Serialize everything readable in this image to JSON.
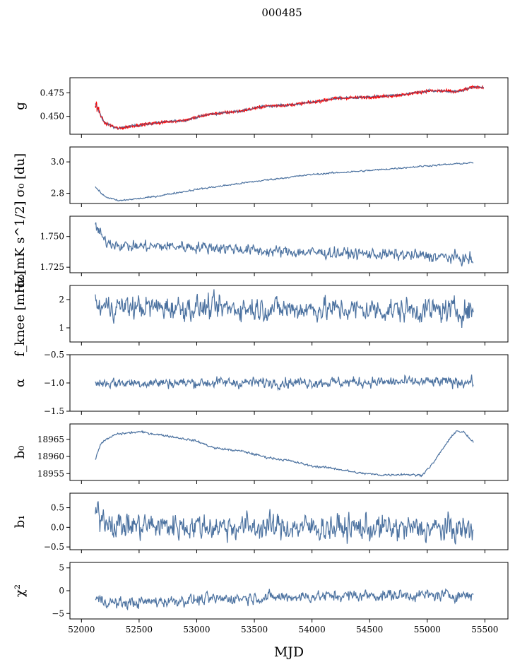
{
  "figure": {
    "title": "000485",
    "xlabel": "MJD"
  },
  "chart_data": {
    "type": "line",
    "x_axis": {
      "range": [
        51900,
        55700
      ],
      "ticks": [
        52000,
        52500,
        53000,
        53500,
        54000,
        54500,
        55000,
        55500
      ],
      "tick_labels": [
        "52000",
        "52500",
        "53000",
        "53500",
        "54000",
        "54500",
        "55000",
        "55500"
      ]
    },
    "colors": {
      "series": "#4c72a0",
      "overlay": "#ff0000"
    },
    "panels": [
      {
        "key": "g",
        "ylabel": "g",
        "ylim": [
          0.431,
          0.491
        ],
        "yticks": [
          0.45,
          0.475
        ],
        "ytick_labels": [
          "0.450",
          "0.475"
        ],
        "noise": 0.0006,
        "overlay": "red",
        "trend": [
          [
            52120,
            0.463
          ],
          [
            52200,
            0.443
          ],
          [
            52320,
            0.437
          ],
          [
            52450,
            0.44
          ],
          [
            52650,
            0.443
          ],
          [
            52900,
            0.446
          ],
          [
            53100,
            0.452
          ],
          [
            53400,
            0.456
          ],
          [
            53600,
            0.461
          ],
          [
            53800,
            0.462
          ],
          [
            54000,
            0.465
          ],
          [
            54200,
            0.469
          ],
          [
            54400,
            0.47
          ],
          [
            54600,
            0.471
          ],
          [
            54800,
            0.473
          ],
          [
            55000,
            0.477
          ],
          [
            55150,
            0.477
          ],
          [
            55250,
            0.476
          ],
          [
            55400,
            0.481
          ],
          [
            55490,
            0.481
          ]
        ]
      },
      {
        "key": "sigma0",
        "ylabel": "σ₀ [du]",
        "ylim": [
          2.735,
          3.095
        ],
        "yticks": [
          2.8,
          3.0
        ],
        "ytick_labels": [
          "2.8",
          "3.0"
        ],
        "noise": 0.0025,
        "trend": [
          [
            52120,
            2.84
          ],
          [
            52200,
            2.78
          ],
          [
            52320,
            2.752
          ],
          [
            52600,
            2.775
          ],
          [
            53000,
            2.825
          ],
          [
            53500,
            2.875
          ],
          [
            54000,
            2.92
          ],
          [
            54500,
            2.945
          ],
          [
            55000,
            2.975
          ],
          [
            55400,
            2.995
          ]
        ]
      },
      {
        "key": "sigma0_mk",
        "ylabel": "σ₀[mK s^1/2]",
        "ylim": [
          1.7205,
          1.7665
        ],
        "yticks": [
          1.725,
          1.75
        ],
        "ytick_labels": [
          "1.725",
          "1.750"
        ],
        "noise": 0.0022,
        "trend": [
          [
            52120,
            1.759
          ],
          [
            52200,
            1.746
          ],
          [
            52400,
            1.742
          ],
          [
            52800,
            1.742
          ],
          [
            53200,
            1.741
          ],
          [
            53600,
            1.738
          ],
          [
            54000,
            1.737
          ],
          [
            54400,
            1.736
          ],
          [
            54800,
            1.735
          ],
          [
            55200,
            1.733
          ],
          [
            55400,
            1.731
          ]
        ]
      },
      {
        "key": "fknee",
        "ylabel": "f_knee [mHz]",
        "ylim": [
          0.5,
          2.5
        ],
        "yticks": [
          1,
          2
        ],
        "ytick_labels": [
          "1",
          "2"
        ],
        "noise": 0.2,
        "trend": [
          [
            52120,
            1.75
          ],
          [
            55400,
            1.6
          ]
        ]
      },
      {
        "key": "alpha",
        "ylabel": "α",
        "ylim": [
          -1.5,
          -0.5
        ],
        "yticks": [
          -1.5,
          -1.0,
          -0.5
        ],
        "ytick_labels": [
          "−1.5",
          "−1.0",
          "−0.5"
        ],
        "noise": 0.045,
        "trend": [
          [
            52120,
            -1.0
          ],
          [
            55400,
            -0.98
          ]
        ]
      },
      {
        "key": "b0",
        "ylabel": "b₀",
        "ylim": [
          18953.0,
          18969.5
        ],
        "yticks": [
          18955,
          18960,
          18965
        ],
        "ytick_labels": [
          "18955",
          "18960",
          "18965"
        ],
        "noise": 0.15,
        "trend": [
          [
            52120,
            18959
          ],
          [
            52170,
            18964
          ],
          [
            52300,
            18966.5
          ],
          [
            52500,
            18967.2
          ],
          [
            52750,
            18966
          ],
          [
            53000,
            18964.5
          ],
          [
            53150,
            18962.5
          ],
          [
            53400,
            18961.5
          ],
          [
            53600,
            18959.8
          ],
          [
            53800,
            18958.8
          ],
          [
            54000,
            18957.2
          ],
          [
            54200,
            18956.5
          ],
          [
            54400,
            18955.2
          ],
          [
            54600,
            18954.6
          ],
          [
            54800,
            18954.8
          ],
          [
            54950,
            18954.5
          ],
          [
            55050,
            18958
          ],
          [
            55150,
            18963
          ],
          [
            55250,
            18967.5
          ],
          [
            55320,
            18967
          ],
          [
            55400,
            18964
          ]
        ]
      },
      {
        "key": "b1",
        "ylabel": "b₁",
        "ylim": [
          -0.57,
          0.87
        ],
        "yticks": [
          -0.5,
          0.0,
          0.5
        ],
        "ytick_labels": [
          "−0.5",
          "0.0",
          "0.5"
        ],
        "noise": 0.16,
        "trend": [
          [
            52120,
            0.4
          ],
          [
            52300,
            0.05
          ],
          [
            55400,
            -0.05
          ]
        ]
      },
      {
        "key": "chi2",
        "ylabel": "χ²",
        "ylim": [
          -6.2,
          6.2
        ],
        "yticks": [
          -5,
          0,
          5
        ],
        "ytick_labels": [
          "−5",
          "0",
          "5"
        ],
        "noise": 0.6,
        "trend": [
          [
            52120,
            -1.8
          ],
          [
            52300,
            -2.8
          ],
          [
            52800,
            -2.2
          ],
          [
            53500,
            -1.5
          ],
          [
            54500,
            -1.0
          ],
          [
            55400,
            -1.0
          ]
        ]
      }
    ]
  }
}
